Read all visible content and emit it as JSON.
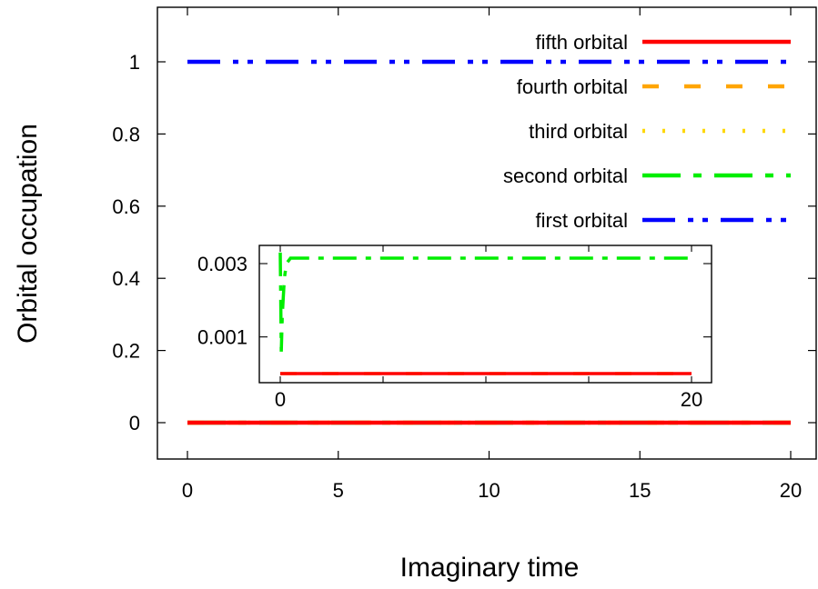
{
  "chart_data": [
    {
      "type": "line",
      "xlabel": "Imaginary time",
      "ylabel": "Orbital occupation",
      "xlim": [
        -1,
        20
      ],
      "ylim": [
        -0.1,
        1.12
      ],
      "xticks": [
        0,
        5,
        10,
        15,
        20
      ],
      "xtick_labels": [
        "0",
        "5",
        "10",
        "15",
        "20"
      ],
      "yticks": [
        0,
        0.2,
        0.4,
        0.6,
        0.8,
        1
      ],
      "ytick_labels": [
        "0",
        "0.2",
        "0.4",
        "0.6",
        "0.8",
        "1"
      ],
      "grid": false,
      "legend_position": "top-right",
      "series": [
        {
          "name": "fifth orbital",
          "color": "#ff0000",
          "dash": "solid",
          "x": [
            0,
            5,
            10,
            15,
            20
          ],
          "y": [
            0,
            0,
            0,
            0,
            0
          ]
        },
        {
          "name": "fourth orbital",
          "color": "#ffa500",
          "dash": "dash",
          "x": [
            0,
            5,
            10,
            15,
            20
          ],
          "y": [
            0,
            0,
            0,
            0,
            0
          ]
        },
        {
          "name": "third orbital",
          "color": "#ffd700",
          "dash": "dot",
          "x": [
            0,
            5,
            10,
            15,
            20
          ],
          "y": [
            0,
            0,
            0,
            0,
            0
          ]
        },
        {
          "name": "second orbital",
          "color": "#00ee00",
          "dash": "longdashdot",
          "x": [
            0,
            5,
            10,
            15,
            20
          ],
          "y": [
            0,
            0,
            0,
            0,
            0
          ]
        },
        {
          "name": "first orbital",
          "color": "#0000ff",
          "dash": "dashdotdot",
          "x": [
            0,
            5,
            10,
            15,
            20
          ],
          "y": [
            1,
            1,
            1,
            1,
            1
          ]
        }
      ]
    },
    {
      "type": "line",
      "role": "inset",
      "xlim": [
        -0.3,
        20.8
      ],
      "ylim": [
        0,
        0.0032
      ],
      "xticks": [
        0,
        20
      ],
      "xtick_labels": [
        "0",
        "20"
      ],
      "yticks": [
        0.001,
        0.003
      ],
      "ytick_labels": [
        "0.001",
        "0.003"
      ],
      "series": [
        {
          "color": "#00ee00",
          "dash": "longdashdot",
          "x": [
            0,
            0.05,
            0.1,
            0.2,
            0.3,
            0.5,
            1,
            5,
            10,
            15,
            20
          ],
          "y": [
            0.0033,
            0.0006,
            0.0016,
            0.0026,
            0.003,
            0.00315,
            0.00315,
            0.00315,
            0.00315,
            0.00315,
            0.00315
          ]
        },
        {
          "color": "#ffa500",
          "dash": "dash",
          "x": [
            0,
            5,
            10,
            15,
            20
          ],
          "y": [
            0,
            0,
            0,
            0,
            0
          ]
        },
        {
          "color": "#ff0000",
          "dash": "solid",
          "x": [
            0,
            5,
            10,
            15,
            20
          ],
          "y": [
            0,
            0,
            0,
            0,
            0
          ]
        }
      ]
    }
  ]
}
